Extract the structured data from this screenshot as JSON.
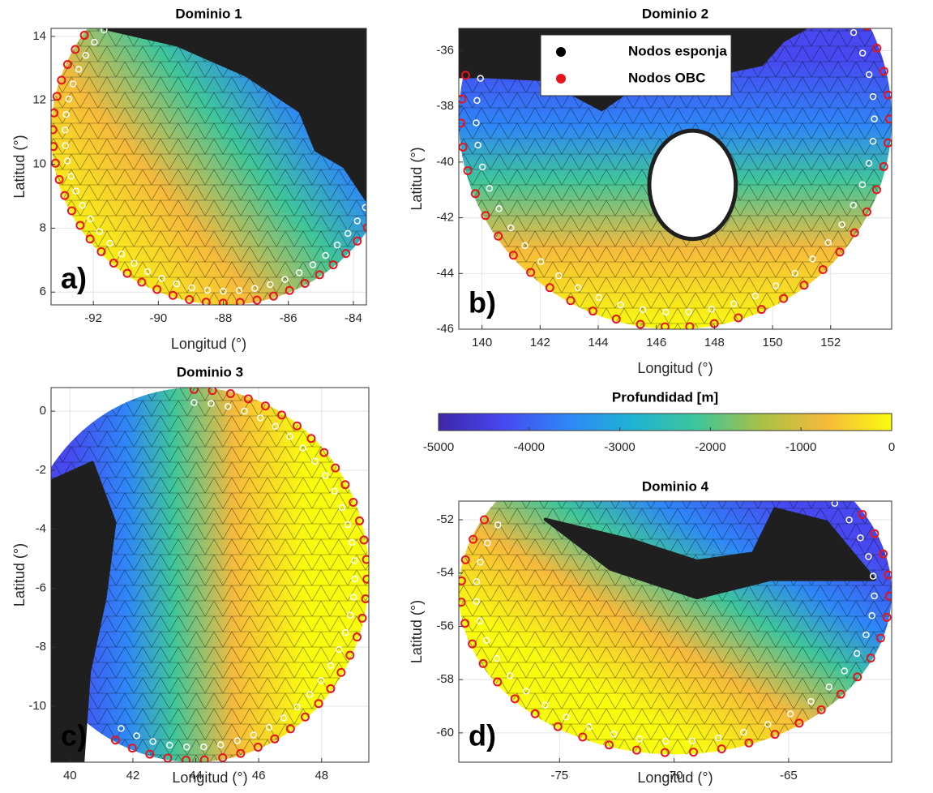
{
  "chart_data": [
    {
      "type": "mesh",
      "title": "Dominio 1",
      "panel_label": "a)",
      "xlabel": "Longitud (°)",
      "ylabel": "Latitud (°)",
      "xlim": [
        -93.3,
        -83.6
      ],
      "ylim": [
        5.6,
        14.25
      ],
      "xticks": [
        -92,
        -90,
        -88,
        -86,
        -84
      ],
      "yticks": [
        6,
        8,
        10,
        12,
        14
      ],
      "grid": true
    },
    {
      "type": "mesh",
      "title": "Dominio 2",
      "panel_label": "b)",
      "xlabel": "Longitud (°)",
      "ylabel": "Latitud (°)",
      "xlim": [
        139.2,
        154.1
      ],
      "ylim": [
        -46,
        -35.2
      ],
      "xticks": [
        140,
        142,
        144,
        146,
        148,
        150,
        152
      ],
      "yticks": [
        -46,
        -44,
        -42,
        -40,
        -38,
        -36
      ],
      "grid": true,
      "legend": [
        {
          "name": "Nodos esponja",
          "color": "#000000"
        },
        {
          "name": "Nodos OBC",
          "color": "#e8141c"
        }
      ]
    },
    {
      "type": "mesh",
      "title": "Dominio 3",
      "panel_label": "c)",
      "xlabel": "Longitud (°)",
      "ylabel": "Latitud (°)",
      "xlim": [
        39.4,
        49.5
      ],
      "ylim": [
        -11.9,
        0.8
      ],
      "xticks": [
        40,
        42,
        44,
        46,
        48
      ],
      "yticks": [
        -10,
        -8,
        -6,
        -4,
        -2,
        0
      ],
      "grid": true
    },
    {
      "type": "colorbar",
      "title": "Profundidad [m]",
      "xlim": [
        -5000,
        0
      ],
      "xticks": [
        -5000,
        -4000,
        -3000,
        -2000,
        -1000,
        0
      ],
      "colors": [
        "#3e26a8",
        "#4748f0",
        "#2e87f7",
        "#1eb3d3",
        "#3fc69a",
        "#a8c144",
        "#f6ba3c",
        "#f9fb0e"
      ]
    },
    {
      "type": "mesh",
      "title": "Dominio 4",
      "panel_label": "d)",
      "xlabel": "Longitud (°)",
      "ylabel": "Latitud (°)",
      "xlim": [
        -79.4,
        -60.5
      ],
      "ylim": [
        -61.1,
        -51.3
      ],
      "xticks": [
        -75,
        -70,
        -65
      ],
      "yticks": [
        -60,
        -58,
        -56,
        -54,
        -52
      ],
      "grid": true
    }
  ]
}
